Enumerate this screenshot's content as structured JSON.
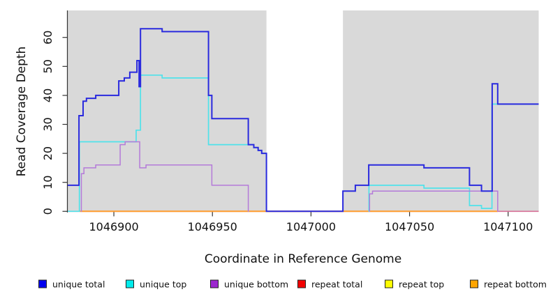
{
  "chart_data": {
    "type": "line",
    "subtype": "step-coverage",
    "title": "",
    "xlabel": "Coordinate in Reference Genome",
    "ylabel": "Read Coverage Depth",
    "x_ticks": [
      1046900,
      1046950,
      1047000,
      1047050,
      1047100
    ],
    "y_ticks": [
      0,
      10,
      20,
      30,
      40,
      50,
      60
    ],
    "x_range": [
      1046876.6,
      1047115.5
    ],
    "y_max_visible": 69,
    "grid": "off",
    "plot_bg_color": "#d9d9d9",
    "no_coverage_region": {
      "from": 1046977.4,
      "to": 1047016.2,
      "color": "#ffffff"
    },
    "legend_position": "bottom",
    "series": [
      {
        "name": "unique total",
        "color": "#2a2ade",
        "legend_color": "#0000f0",
        "line_width": 2.0,
        "segments": [
          {
            "steps": [
              [
                1046876.6,
                9
              ],
              [
                1046882.3,
                33
              ],
              [
                1046884.4,
                38
              ],
              [
                1046886.1,
                39
              ],
              [
                1046890.8,
                40
              ],
              [
                1046902.5,
                45
              ],
              [
                1046905.3,
                46
              ],
              [
                1046908.1,
                48
              ],
              [
                1046911.7,
                52
              ],
              [
                1046912.8,
                43
              ],
              [
                1046913.5,
                63
              ],
              [
                1046924.5,
                62
              ],
              [
                1046948.0,
                40
              ],
              [
                1046949.7,
                32
              ],
              [
                1046968.2,
                23
              ],
              [
                1046971.0,
                22
              ],
              [
                1046973.2,
                21
              ],
              [
                1046975.0,
                20
              ],
              [
                1046977.4,
                0
              ],
              [
                1047016.2,
                7
              ],
              [
                1047022.5,
                9
              ],
              [
                1047029.3,
                16
              ],
              [
                1047057.3,
                15
              ],
              [
                1047080.4,
                9
              ],
              [
                1047086.5,
                7
              ],
              [
                1047091.9,
                44
              ],
              [
                1047094.7,
                37
              ]
            ],
            "end": 1047115.5
          }
        ]
      },
      {
        "name": "unique top",
        "color": "#4fe2ea",
        "legend_color": "#00ecec",
        "line_width": 1.7,
        "segments": [
          {
            "steps": [
              [
                1046876.6,
                0
              ],
              [
                1046882.5,
                24
              ],
              [
                1046911.3,
                28
              ],
              [
                1046913.5,
                47
              ],
              [
                1046924.5,
                46
              ],
              [
                1046948.0,
                23
              ],
              [
                1046971.0,
                22
              ],
              [
                1046973.2,
                21
              ],
              [
                1046975.0,
                20
              ],
              [
                1046977.4,
                0
              ]
            ],
            "end": 1046977.6
          },
          {
            "steps": [
              [
                1047029.2,
                0
              ],
              [
                1047029.4,
                9
              ],
              [
                1047057.3,
                8
              ],
              [
                1047080.4,
                2
              ],
              [
                1047086.5,
                1
              ],
              [
                1047091.8,
                37
              ]
            ],
            "end": 1047115.5
          }
        ]
      },
      {
        "name": "unique bottom",
        "color": "#b47ad9",
        "legend_color": "#9c27cf",
        "line_width": 1.5,
        "segments": [
          {
            "steps": [
              [
                1046883.3,
                0
              ],
              [
                1046883.5,
                13
              ],
              [
                1046884.8,
                15
              ],
              [
                1046890.8,
                16
              ],
              [
                1046903.2,
                23
              ],
              [
                1046905.7,
                24
              ],
              [
                1046913.1,
                15
              ],
              [
                1046916.3,
                16
              ],
              [
                1046949.7,
                9
              ],
              [
                1046968.2,
                0
              ]
            ],
            "end": 1046968.4
          },
          {
            "steps": [
              [
                1047029.5,
                0
              ],
              [
                1047029.7,
                6
              ],
              [
                1047031.2,
                7
              ],
              [
                1047094.7,
                0
              ]
            ],
            "end": 1047094.9
          }
        ]
      },
      {
        "name": "repeat total",
        "color": "#d76f96",
        "legend_color": "#f20000",
        "line_width": 1.6,
        "segments": [
          {
            "steps": [
              [
                1046876.6,
                0
              ]
            ],
            "end": 1047115.5
          }
        ]
      },
      {
        "name": "repeat top",
        "color": "#ffff00",
        "legend_color": "#fdfd00",
        "line_width": 1.0,
        "segments": [
          {
            "steps": [
              [
                1046876.6,
                0
              ]
            ],
            "end": 1047115.5
          }
        ]
      },
      {
        "name": "repeat bottom",
        "color": "#ff9d2e",
        "legend_color": "#ffa500",
        "line_width": 2.0,
        "segments": [
          {
            "steps": [
              [
                1046882.8,
                0
              ]
            ],
            "end": 1047094.7
          }
        ]
      }
    ],
    "draw_order": [
      "repeat top",
      "repeat total",
      "repeat bottom",
      "unique top",
      "unique bottom",
      "unique total"
    ],
    "legend": [
      {
        "label": "unique total"
      },
      {
        "label": "unique top"
      },
      {
        "label": "unique bottom"
      },
      {
        "label": "repeat total"
      },
      {
        "label": "repeat top"
      },
      {
        "label": "repeat bottom"
      }
    ]
  }
}
